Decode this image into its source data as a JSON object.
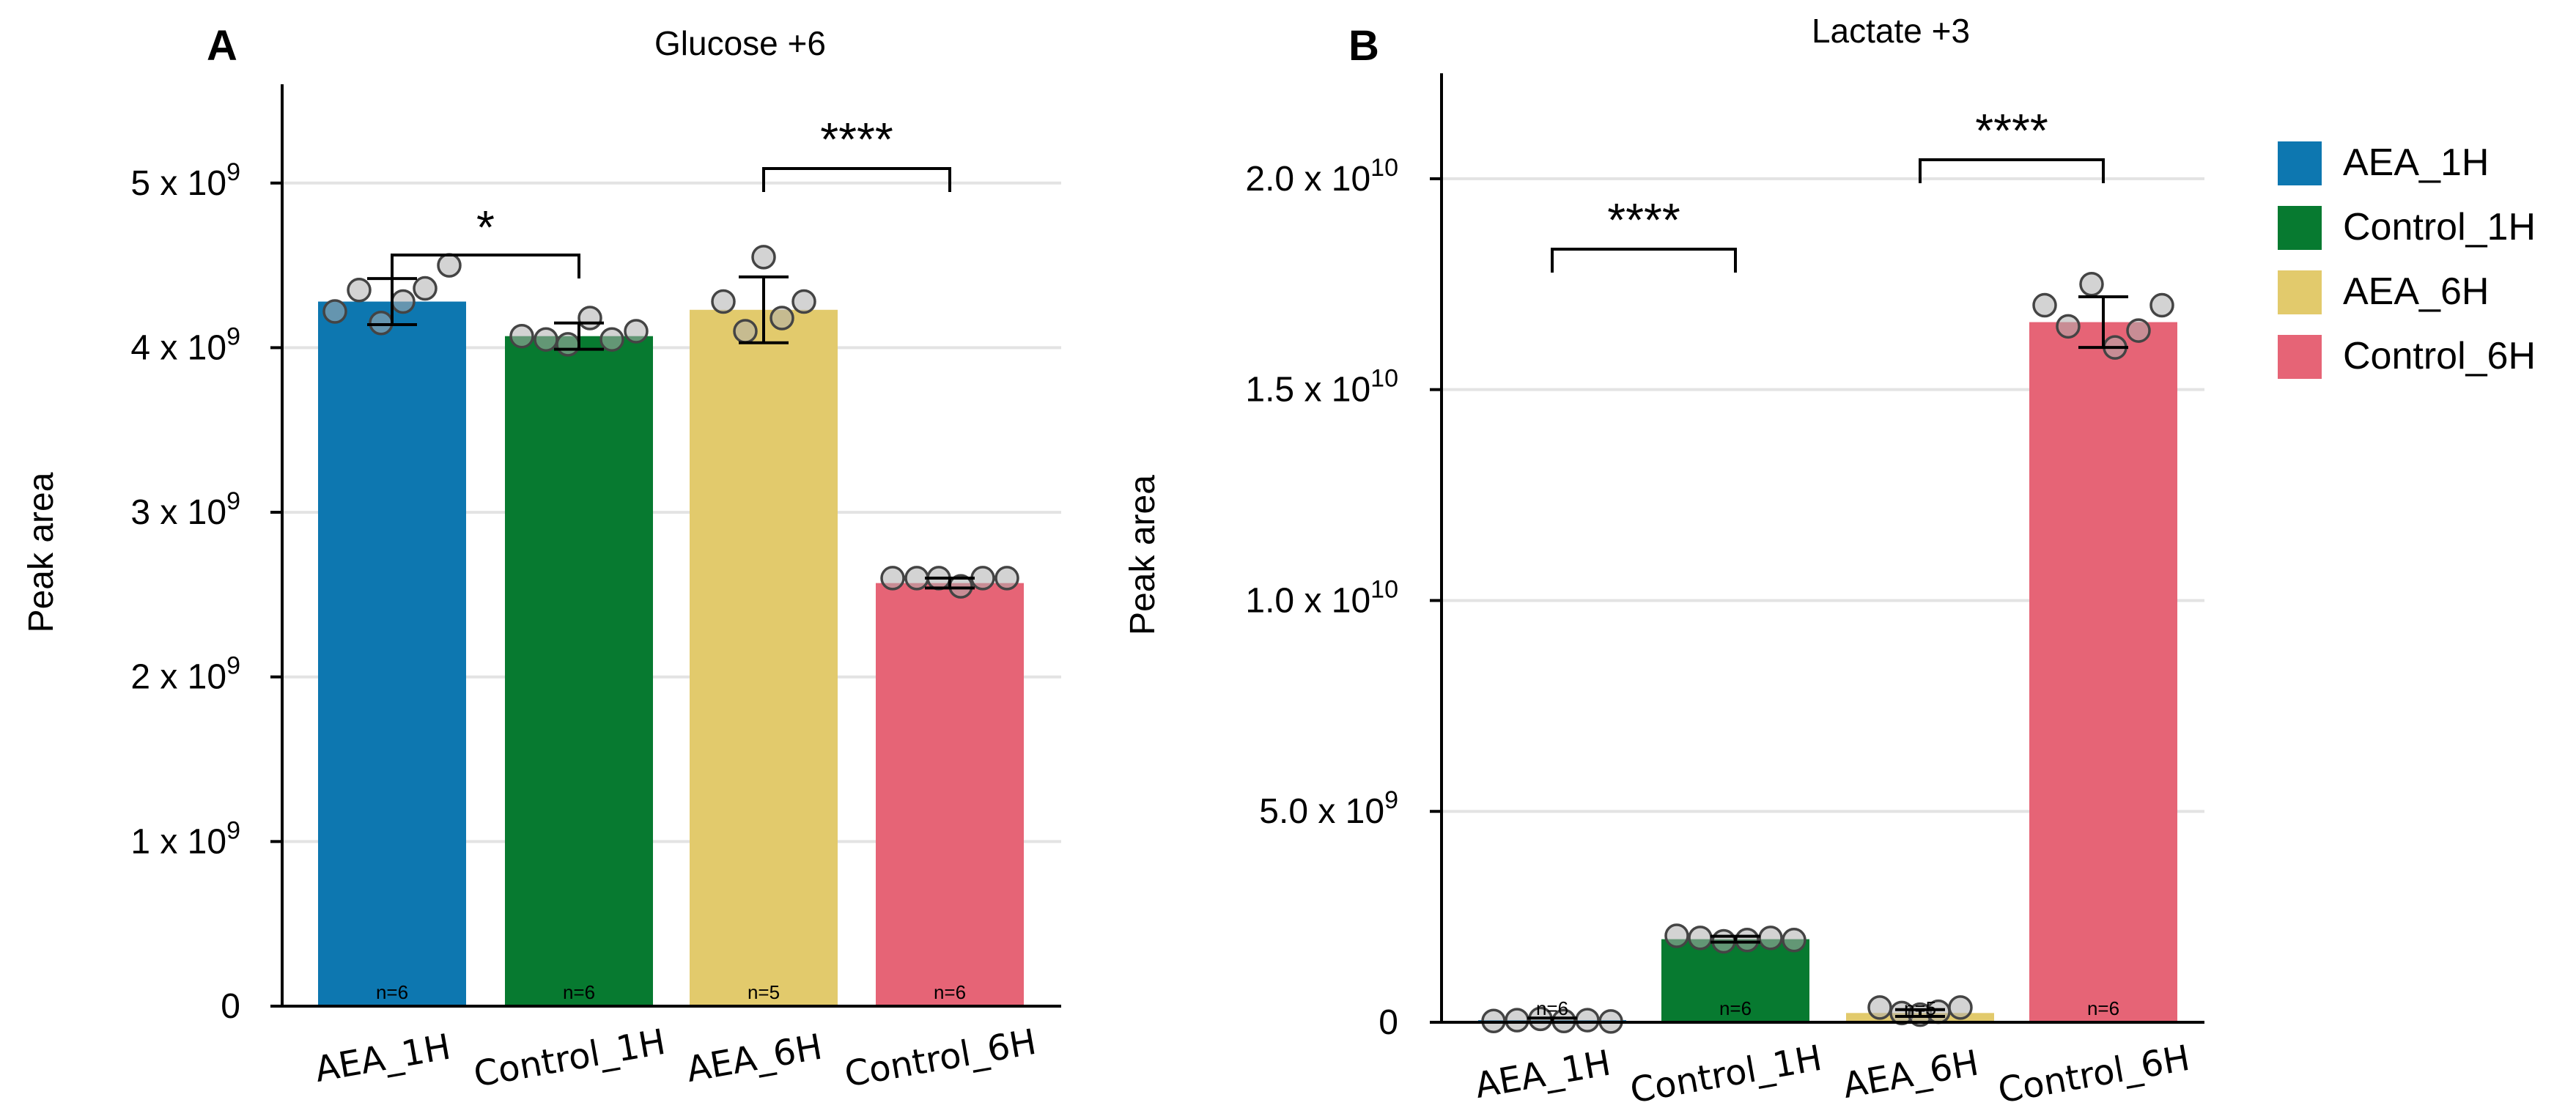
{
  "colors": {
    "AEA_1H": "#0d77b0",
    "Control_1H": "#077a30",
    "AEA_6H": "#e2ca6c",
    "Control_6H": "#e66476"
  },
  "legend": [
    "AEA_1H",
    "Control_1H",
    "AEA_6H",
    "Control_6H"
  ],
  "chart_data": [
    {
      "type": "bar",
      "panel": "A",
      "title": "Glucose +6",
      "ylabel": "Peak area",
      "xlabel": "",
      "categories": [
        "AEA_1H",
        "Control_1H",
        "AEA_6H",
        "Control_6H"
      ],
      "values": [
        4280000000.0,
        4070000000.0,
        4230000000.0,
        2570000000.0
      ],
      "error": [
        140000000.0,
        80000000.0,
        200000000.0,
        30000000.0
      ],
      "points": [
        [
          4220000000.0,
          4350000000.0,
          4150000000.0,
          4280000000.0,
          4360000000.0,
          4500000000.0
        ],
        [
          4070000000.0,
          4050000000.0,
          4020000000.0,
          4180000000.0,
          4050000000.0,
          4100000000.0
        ],
        [
          4280000000.0,
          4100000000.0,
          4550000000.0,
          4180000000.0,
          4280000000.0
        ],
        [
          2600000000.0,
          2600000000.0,
          2600000000.0,
          2550000000.0,
          2600000000.0,
          2600000000.0
        ]
      ],
      "n_labels": [
        "n=6",
        "n=6",
        "n=5",
        "n=6"
      ],
      "ylim": [
        0,
        5600000000.0
      ],
      "yticks": [
        0,
        1000000000.0,
        2000000000.0,
        3000000000.0,
        4000000000.0,
        5000000000.0
      ],
      "yticklabels": [
        {
          "base": "0",
          "exp": ""
        },
        {
          "base": "1 x 10",
          "exp": "9"
        },
        {
          "base": "2 x 10",
          "exp": "9"
        },
        {
          "base": "3 x 10",
          "exp": "9"
        },
        {
          "base": "4 x 10",
          "exp": "9"
        },
        {
          "base": "5 x 10",
          "exp": "9"
        }
      ],
      "grid": true,
      "significance": [
        {
          "from": 0,
          "to": 1,
          "label": "*"
        },
        {
          "from": 2,
          "to": 3,
          "label": "****"
        }
      ]
    },
    {
      "type": "bar",
      "panel": "B",
      "title": "Lactate +3",
      "ylabel": "Peak area",
      "xlabel": "",
      "categories": [
        "AEA_1H",
        "Control_1H",
        "AEA_6H",
        "Control_6H"
      ],
      "values": [
        50000000.0,
        1970000000.0,
        220000000.0,
        16600000000.0
      ],
      "error": [
        50000000.0,
        70000000.0,
        80000000.0,
        600000000.0
      ],
      "points": [
        [
          30000000.0,
          50000000.0,
          80000000.0,
          30000000.0,
          50000000.0,
          20000000.0
        ],
        [
          2050000000.0,
          2000000000.0,
          1920000000.0,
          1950000000.0,
          2000000000.0,
          1950000000.0
        ],
        [
          350000000.0,
          220000000.0,
          180000000.0,
          250000000.0,
          350000000.0
        ],
        [
          17000000000.0,
          16500000000.0,
          17500000000.0,
          16000000000.0,
          16400000000.0,
          17000000000.0
        ]
      ],
      "n_labels": [
        "n=6",
        "n=6",
        "n=5",
        "n=6"
      ],
      "ylim": [
        0,
        22500000000.0
      ],
      "yticks": [
        0,
        5000000000.0,
        10000000000.0,
        15000000000.0,
        20000000000.0
      ],
      "yticklabels": [
        {
          "base": "0",
          "exp": ""
        },
        {
          "base": "5.0 x 10",
          "exp": "9"
        },
        {
          "base": "1.0 x 10",
          "exp": "10"
        },
        {
          "base": "1.5 x 10",
          "exp": "10"
        },
        {
          "base": "2.0 x 10",
          "exp": "10"
        }
      ],
      "grid": true,
      "significance": [
        {
          "from": 0,
          "to": 1,
          "label": "****"
        },
        {
          "from": 2,
          "to": 3,
          "label": "****"
        }
      ]
    }
  ]
}
